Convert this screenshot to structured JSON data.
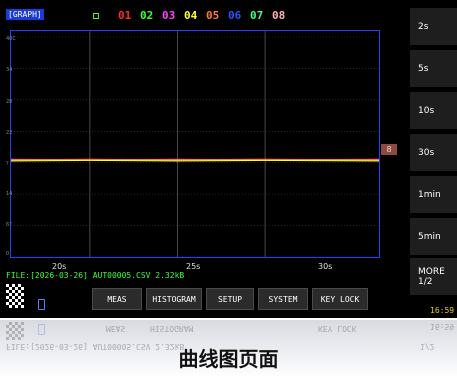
{
  "header": {
    "graph_label": "[GRAPH]",
    "channels": [
      {
        "label": "01",
        "color": "#ff2a2a"
      },
      {
        "label": "02",
        "color": "#3cff3c"
      },
      {
        "label": "03",
        "color": "#ff40ff"
      },
      {
        "label": "04",
        "color": "#ffff30"
      },
      {
        "label": "05",
        "color": "#ff7a30"
      },
      {
        "label": "06",
        "color": "#3050ff"
      },
      {
        "label": "07",
        "color": "#40ff80"
      },
      {
        "label": "08",
        "color": "#ffb0b0"
      }
    ]
  },
  "time_buttons": [
    "2s",
    "5s",
    "10s",
    "30s",
    "1min",
    "5min"
  ],
  "more_button": {
    "line1": "MORE",
    "line2": "1/2"
  },
  "channel_marker": "8",
  "file_info": "FILE:[2026-03-26] AUT00005.CSV  2.32kB",
  "function_buttons": [
    "MEAS",
    "HISTOGRAM",
    "SETUP",
    "SYSTEM",
    "KEY LOCK"
  ],
  "clock": "16:59",
  "caption": "曲线图页面",
  "chart_data": {
    "type": "line",
    "title": "",
    "xlabel": "",
    "ylabel": "",
    "x_ticks": [
      "20s",
      "25s",
      "30s"
    ],
    "y_ticks": [
      "40C",
      "34",
      "28",
      "22",
      "?",
      "14",
      "6?",
      "0"
    ],
    "x": [
      15.5,
      20,
      25,
      30,
      36.5
    ],
    "series": [
      {
        "color": "#ff2a2a",
        "values": [
          17.2,
          17.1,
          17.2,
          17.1,
          17.2
        ]
      },
      {
        "color": "#3cff3c",
        "values": [
          17.1,
          17.2,
          17.1,
          17.2,
          17.1
        ]
      },
      {
        "color": "#ff40ff",
        "values": [
          17.3,
          17.2,
          17.3,
          17.2,
          17.3
        ]
      },
      {
        "color": "#ffff30",
        "values": [
          17.0,
          17.1,
          17.0,
          17.1,
          17.0
        ]
      },
      {
        "color": "#ff7a30",
        "values": [
          17.2,
          17.3,
          17.2,
          17.3,
          17.2
        ]
      }
    ],
    "xlim": [
      15.5,
      36.5
    ],
    "ylim": [
      0,
      40
    ],
    "grid": true
  }
}
